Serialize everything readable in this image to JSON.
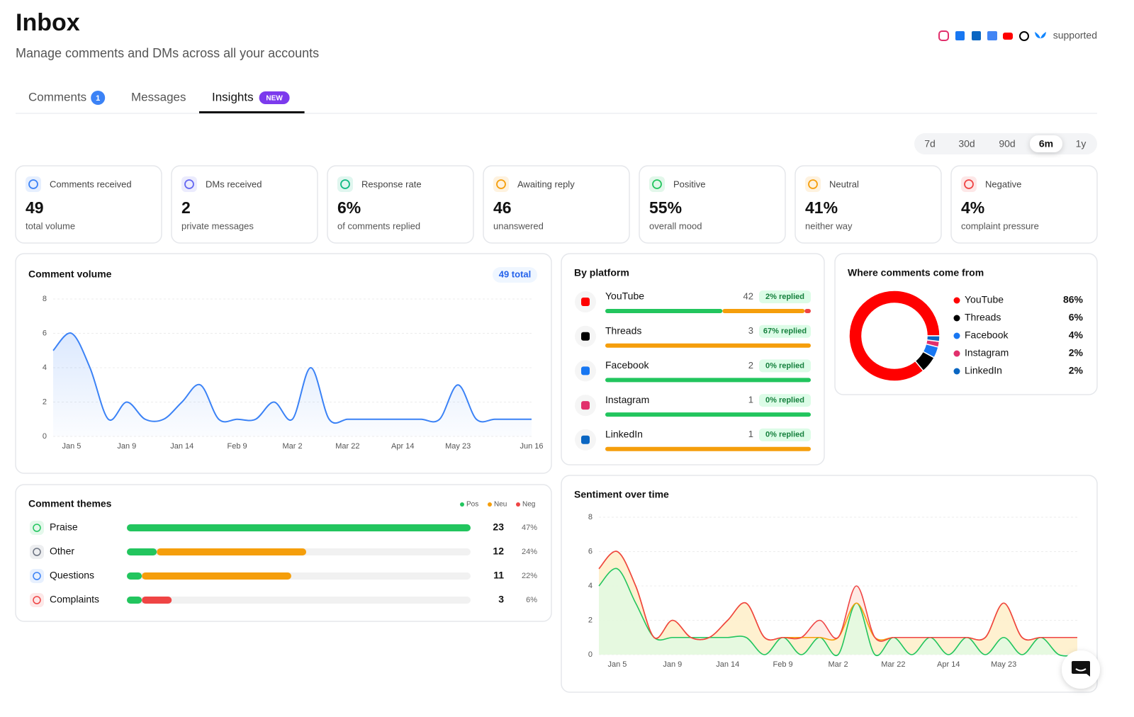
{
  "header": {
    "title": "Inbox",
    "subtitle": "Manage comments and DMs across all your accounts",
    "supported": "supported"
  },
  "tabs": [
    {
      "label": "Comments",
      "badge": "1"
    },
    {
      "label": "Messages"
    },
    {
      "label": "Insights",
      "badge": "NEW"
    }
  ],
  "active_tab": 2,
  "ranges": [
    "7d",
    "30d",
    "90d",
    "6m",
    "1y"
  ],
  "active_range": 3,
  "stats": [
    {
      "label": "Comments received",
      "value": 49,
      "sub": "total volume",
      "color": "#3b82f6"
    },
    {
      "label": "DMs received",
      "value": 2,
      "sub": "private messages",
      "color": "#6366f1"
    },
    {
      "label": "Response rate",
      "value": "6%",
      "sub": "of comments replied",
      "color": "#10b981"
    },
    {
      "label": "Awaiting reply",
      "value": 46,
      "sub": "unanswered",
      "color": "#f59e0b"
    },
    {
      "label": "Positive",
      "value": "55%",
      "sub": "overall mood",
      "color": "#22c55e"
    },
    {
      "label": "Neutral",
      "value": "41%",
      "sub": "neither way",
      "color": "#f59e0b"
    },
    {
      "label": "Negative",
      "value": "4%",
      "sub": "complaint pressure",
      "color": "#ef4444"
    }
  ],
  "platforms": {
    "title": "By platform",
    "colors": [
      "#22c55e",
      "#f59e0b",
      "#ef4444"
    ],
    "items": [
      {
        "name": "YouTube",
        "count": 42,
        "replied": "2% replied",
        "split": [
          57,
          40,
          3
        ],
        "color": "#ff0000"
      },
      {
        "name": "Threads",
        "count": 3,
        "replied": "67% replied",
        "split": [
          0,
          100,
          0
        ],
        "color": "#000000"
      },
      {
        "name": "Facebook",
        "count": 2,
        "replied": "0% replied",
        "split": [
          100,
          0,
          0
        ],
        "color": "#1877f2"
      },
      {
        "name": "Instagram",
        "count": 1,
        "replied": "0% replied",
        "split": [
          100,
          0,
          0
        ],
        "color": "#e1306c"
      },
      {
        "name": "LinkedIn",
        "count": 1,
        "replied": "0% replied",
        "split": [
          0,
          100,
          0
        ],
        "color": "#0a66c2"
      }
    ]
  },
  "chart_data": [
    {
      "type": "line",
      "title": "Comment volume",
      "badge": "49 total",
      "color": "#3b82f6",
      "categories": [
        null,
        "Jan 5",
        null,
        null,
        "Jan 9",
        null,
        null,
        "Jan 14",
        null,
        null,
        "Feb 9",
        null,
        null,
        "Mar 2",
        null,
        null,
        "Mar 22",
        null,
        null,
        "Apr 14",
        null,
        null,
        "May 23",
        null,
        null,
        null,
        "Jun 16"
      ],
      "values": [
        5,
        6,
        4,
        1,
        2,
        1,
        1,
        2,
        3,
        1,
        1,
        1,
        2,
        1,
        4,
        1,
        1,
        1,
        1,
        1,
        1,
        1,
        3,
        1,
        1,
        1,
        1
      ],
      "ylim": [
        0,
        8
      ],
      "yticks": [
        0,
        2,
        4,
        6,
        8
      ],
      "grid": true
    },
    {
      "type": "pie",
      "title": "Where comments come from",
      "categories": [
        "YouTube",
        "Threads",
        "Facebook",
        "Instagram",
        "LinkedIn"
      ],
      "values": [
        86,
        6,
        4,
        2,
        2
      ],
      "value_labels": [
        "86%",
        "6%",
        "4%",
        "2%",
        "2%"
      ],
      "colors": [
        "#ff0000",
        "#000000",
        "#1877f2",
        "#e1306c",
        "#0a66c2"
      ]
    },
    {
      "type": "hbar",
      "title": "Comment themes",
      "stacked": true,
      "categories": [
        "Praise",
        "Other",
        "Questions",
        "Complaints"
      ],
      "totals": [
        23,
        12,
        11,
        3
      ],
      "share_labels": [
        "47%",
        "24%",
        "22%",
        "6%"
      ],
      "icon_colors": [
        "#22c55e",
        "#6b7280",
        "#3b82f6",
        "#ef4444"
      ],
      "series": [
        {
          "name": "Pos",
          "color": "#22c55e",
          "values": [
            23,
            2,
            1,
            1
          ]
        },
        {
          "name": "Neu",
          "color": "#f59e0b",
          "values": [
            0,
            10,
            10,
            0
          ]
        },
        {
          "name": "Neg",
          "color": "#ef4444",
          "values": [
            0,
            0,
            0,
            2
          ]
        }
      ],
      "xlim": [
        0,
        23
      ]
    },
    {
      "type": "area",
      "title": "Sentiment over time",
      "stacked": true,
      "categories": [
        null,
        "Jan 5",
        null,
        null,
        "Jan 9",
        null,
        null,
        "Jan 14",
        null,
        null,
        "Feb 9",
        null,
        null,
        "Mar 2",
        null,
        null,
        "Mar 22",
        null,
        null,
        "Apr 14",
        null,
        null,
        "May 23",
        null,
        null,
        null,
        "Jun 16"
      ],
      "series": [
        {
          "color": "#22c55e",
          "values": [
            4,
            5,
            3,
            1,
            1,
            1,
            1,
            1,
            1,
            0,
            1,
            0,
            1,
            0,
            3,
            0,
            1,
            0,
            1,
            0,
            1,
            0,
            1,
            0,
            1,
            0,
            0
          ]
        },
        {
          "color": "#f59e0b",
          "values": [
            1,
            1,
            1,
            0,
            1,
            0,
            0,
            1,
            2,
            1,
            0,
            1,
            0,
            1,
            0,
            1,
            0,
            1,
            0,
            1,
            0,
            1,
            2,
            1,
            0,
            1,
            1
          ]
        },
        {
          "color": "#ef4444",
          "values": [
            0,
            0,
            0,
            0,
            0,
            0,
            0,
            0,
            0,
            0,
            0,
            0,
            1,
            0,
            1,
            0,
            0,
            0,
            0,
            0,
            0,
            0,
            0,
            0,
            0,
            0,
            0
          ]
        }
      ],
      "ylim": [
        0,
        8
      ],
      "yticks": [
        0,
        2,
        4,
        6,
        8
      ],
      "grid": true
    }
  ]
}
